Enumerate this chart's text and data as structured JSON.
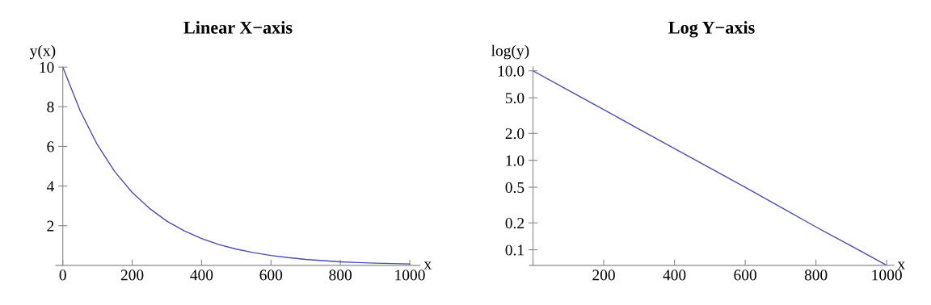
{
  "chart_data": [
    {
      "type": "line",
      "title": "Linear X−axis",
      "xlabel": "x",
      "ylabel": "y(x)",
      "xlim": [
        -20,
        1030
      ],
      "ylim": [
        0,
        10
      ],
      "xticks": [
        0,
        200,
        400,
        600,
        800,
        1000
      ],
      "yticks": [
        2,
        4,
        6,
        8,
        10
      ],
      "grid": false,
      "marker": "none",
      "line_style": "solid",
      "x": [
        0,
        50,
        100,
        150,
        200,
        250,
        300,
        350,
        400,
        450,
        500,
        550,
        600,
        650,
        700,
        750,
        800,
        850,
        900,
        950,
        1000
      ],
      "series": [
        {
          "color": "#4b4bb4",
          "values": [
            10,
            7.8,
            6.07,
            4.72,
            3.68,
            2.87,
            2.23,
            1.74,
            1.35,
            1.05,
            0.82,
            0.64,
            0.5,
            0.39,
            0.3,
            0.24,
            0.18,
            0.14,
            0.11,
            0.09,
            0.07
          ]
        }
      ]
    },
    {
      "type": "line",
      "title": "Log Y−axis",
      "xlabel": "x",
      "ylabel": "log(y)",
      "log": "y",
      "xlim": [
        -10,
        1020
      ],
      "ylim": [
        0.067,
        11
      ],
      "xticks": [
        {
          "value": 0,
          "label": null
        },
        200,
        400,
        600,
        800,
        1000
      ],
      "yticks": [
        {
          "value": 0.1,
          "label": "0.1"
        },
        {
          "value": 0.2,
          "label": "0.2"
        },
        {
          "value": 0.5,
          "label": "0.5"
        },
        {
          "value": 1,
          "label": "1.0"
        },
        {
          "value": 2,
          "label": "2.0"
        },
        {
          "value": 5,
          "label": "5.0"
        },
        {
          "value": 10,
          "label": "10.0"
        }
      ],
      "grid": false,
      "marker": "none",
      "line_style": "solid",
      "x": [
        0,
        100,
        200,
        300,
        400,
        500,
        600,
        700,
        800,
        900,
        1000
      ],
      "series": [
        {
          "color": "#4b4bb4",
          "values": [
            10,
            6.07,
            3.68,
            2.23,
            1.35,
            0.82,
            0.5,
            0.3,
            0.18,
            0.11,
            0.067
          ]
        }
      ]
    }
  ]
}
